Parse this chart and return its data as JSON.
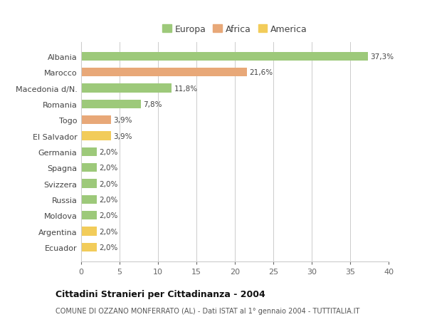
{
  "categories": [
    "Albania",
    "Marocco",
    "Macedonia d/N.",
    "Romania",
    "Togo",
    "El Salvador",
    "Germania",
    "Spagna",
    "Svizzera",
    "Russia",
    "Moldova",
    "Argentina",
    "Ecuador"
  ],
  "values": [
    37.3,
    21.6,
    11.8,
    7.8,
    3.9,
    3.9,
    2.0,
    2.0,
    2.0,
    2.0,
    2.0,
    2.0,
    2.0
  ],
  "labels": [
    "37,3%",
    "21,6%",
    "11,8%",
    "7,8%",
    "3,9%",
    "3,9%",
    "2,0%",
    "2,0%",
    "2,0%",
    "2,0%",
    "2,0%",
    "2,0%",
    "2,0%"
  ],
  "continent": [
    "Europa",
    "Africa",
    "Europa",
    "Europa",
    "Africa",
    "America",
    "Europa",
    "Europa",
    "Europa",
    "Europa",
    "Europa",
    "America",
    "America"
  ],
  "colors": {
    "Europa": "#9dc97a",
    "Africa": "#e8a878",
    "America": "#f2cc5a"
  },
  "legend_order": [
    "Europa",
    "Africa",
    "America"
  ],
  "title_bold": "Cittadini Stranieri per Cittadinanza - 2004",
  "subtitle": "COMUNE DI OZZANO MONFERRATO (AL) - Dati ISTAT al 1° gennaio 2004 - TUTTITALIA.IT",
  "xlim": [
    0,
    40
  ],
  "xticks": [
    0,
    5,
    10,
    15,
    20,
    25,
    30,
    35,
    40
  ],
  "background_color": "#ffffff",
  "grid_color": "#cccccc"
}
